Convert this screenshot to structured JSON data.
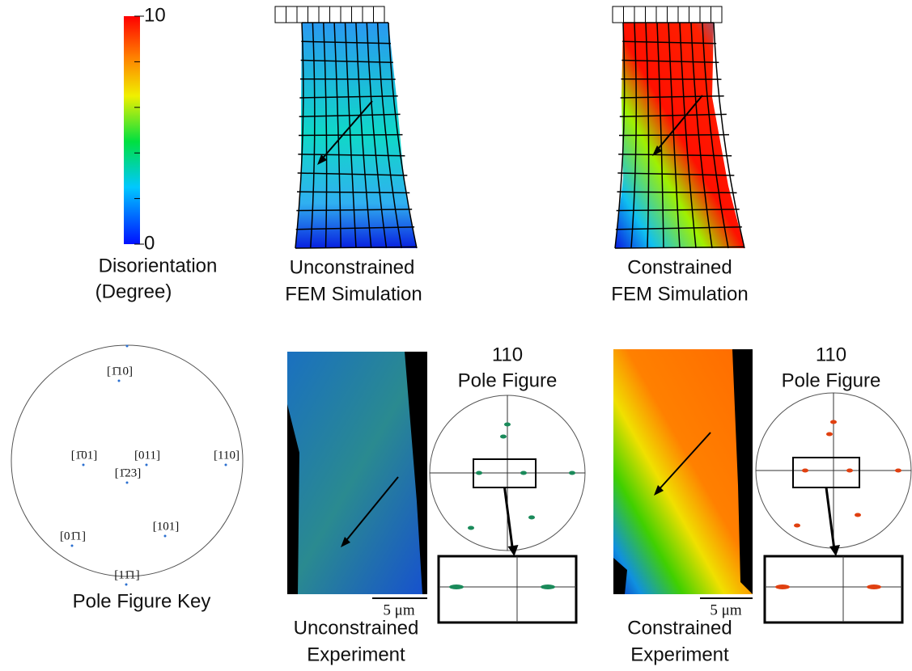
{
  "colorbar": {
    "range": [
      0,
      10
    ],
    "labels": [
      10,
      0
    ],
    "title": [
      "Disorientation",
      "(Degree)"
    ]
  },
  "simulations": [
    {
      "caption": [
        "Unconstrained",
        "FEM Simulation"
      ]
    },
    {
      "caption": [
        "Constrained",
        "FEM Simulation"
      ]
    }
  ],
  "pole_figure_key": {
    "caption": "Pole Figure Key",
    "labels": [
      "[1̄10]",
      "[1̄01]",
      "[011]",
      "[1̄23]",
      "[110]",
      "[01̄1]",
      "[101]",
      "[11̄1]"
    ]
  },
  "experiments": [
    {
      "caption": [
        "Unconstrained",
        "Experiment"
      ],
      "scale_bar": "5 μm",
      "pole_figure": {
        "title": [
          "110",
          "Pole Figure"
        ]
      }
    },
    {
      "caption": [
        "Constrained",
        "Experiment"
      ],
      "scale_bar": "5 μm",
      "pole_figure": {
        "title": [
          "110",
          "Pole Figure"
        ]
      }
    }
  ]
}
